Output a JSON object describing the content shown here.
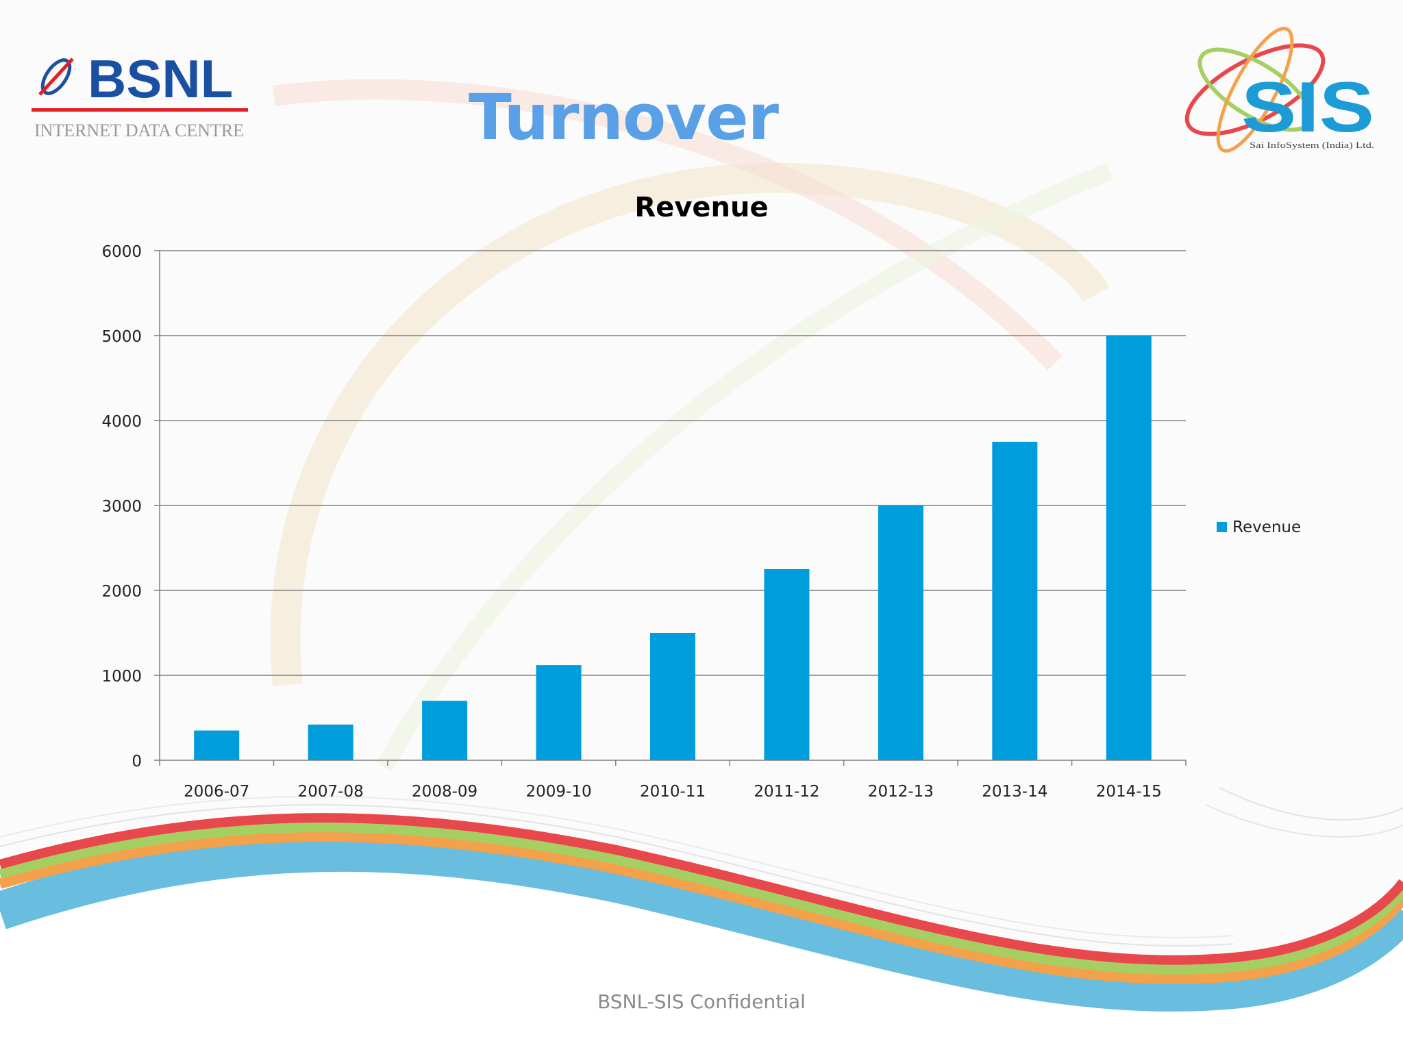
{
  "slide": {
    "title": "Turnover",
    "footer": "BSNL-SIS Confidential"
  },
  "logos": {
    "left": {
      "name": "BSNL",
      "subtitle": "INTERNET DATA CENTRE",
      "brand_color": "#1a4fa3",
      "accent_color": "#e31e24"
    },
    "right": {
      "name": "SIS",
      "subtitle": "Sai InfoSystem (India) Ltd.",
      "brand_color": "#1d9bd7"
    }
  },
  "colors": {
    "title": "#5aa0e6",
    "bar": "#009ddc",
    "wave": [
      "#e8474b",
      "#a6cf63",
      "#f4a14b",
      "#4fb1d8"
    ]
  },
  "chart_data": {
    "type": "bar",
    "title": "Revenue",
    "categories": [
      "2006-07",
      "2007-08",
      "2008-09",
      "2009-10",
      "2010-11",
      "2011-12",
      "2012-13",
      "2013-14",
      "2014-15"
    ],
    "series": [
      {
        "name": "Revenue",
        "values": [
          350,
          420,
          700,
          1120,
          1500,
          2250,
          3000,
          3750,
          5000
        ]
      }
    ],
    "ylim": [
      0,
      6000
    ],
    "yticks": [
      0,
      1000,
      2000,
      3000,
      4000,
      5000,
      6000
    ],
    "grid": true,
    "legend": "right"
  }
}
